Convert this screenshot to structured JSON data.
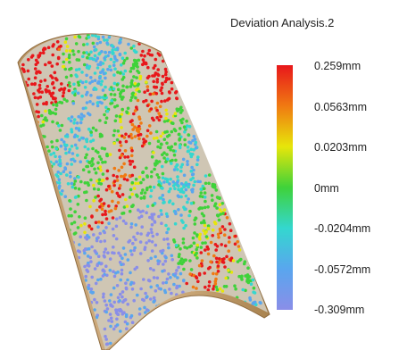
{
  "title": "Deviation Analysis.2",
  "colorbar": {
    "colors": [
      "#e8171b",
      "#f07a12",
      "#e7e60a",
      "#3fd23a",
      "#34d7cf",
      "#59a6ee",
      "#8a8ee8"
    ],
    "labels": [
      "0.259mm",
      "0.0563mm",
      "0.0203mm",
      "0mm",
      "-0.0204mm",
      "-0.0572mm",
      "-0.309mm"
    ]
  },
  "surface": {
    "base_color": "#c9a577",
    "point_colors": [
      "#e8171b",
      "#f07a12",
      "#e7e60a",
      "#3fd23a",
      "#34d7cf",
      "#59a6ee",
      "#8a8ee8"
    ]
  }
}
